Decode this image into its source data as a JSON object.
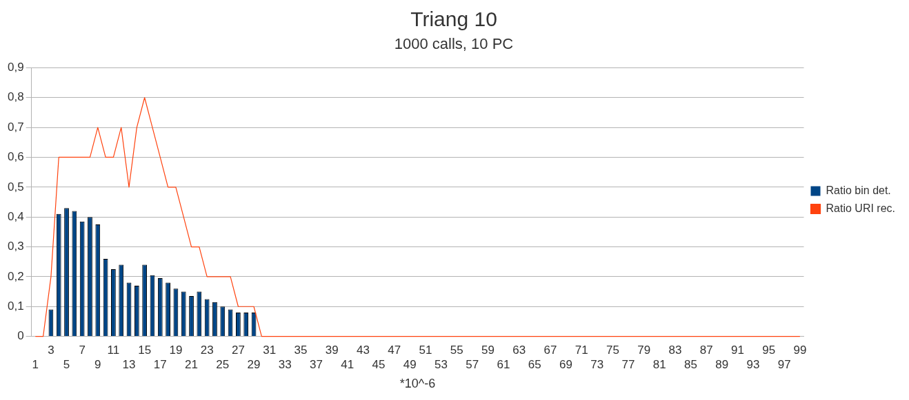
{
  "chart_data": {
    "type": "bar",
    "title": "Triang 10",
    "subtitle": "1000 calls, 10 PC",
    "xlabel": "*10^-6",
    "categories": [
      "1",
      null,
      "3",
      null,
      "5",
      null,
      "7",
      null,
      "9",
      null,
      "11",
      null,
      "13",
      null,
      "15",
      null,
      "17",
      null,
      "19",
      null,
      "21",
      null,
      "23",
      null,
      "25",
      null,
      "27",
      null,
      "29",
      null,
      "31",
      null,
      "33",
      null,
      "35",
      null,
      "37",
      null,
      "39",
      null,
      "41",
      null,
      "43",
      null,
      "45",
      null,
      "47",
      null,
      "49",
      null,
      "51",
      null,
      "53",
      null,
      "55",
      null,
      "57",
      null,
      "59",
      null,
      "61",
      null,
      "63",
      null,
      "65",
      null,
      "67",
      null,
      "69",
      null,
      "71",
      null,
      "73",
      null,
      "75",
      null,
      "77",
      null,
      "79",
      null,
      "81",
      null,
      "83",
      null,
      "85",
      null,
      "87",
      null,
      "89",
      null,
      "91",
      null,
      "93",
      null,
      "95",
      null,
      "97",
      null,
      "99"
    ],
    "series": [
      {
        "name": "Ratio bin det.",
        "color": "#004586",
        "values": [
          0,
          0,
          0.09,
          0.41,
          0.43,
          0.42,
          0.385,
          0.4,
          0.375,
          0.26,
          0.225,
          0.24,
          0.18,
          0.17,
          0.24,
          0.205,
          0.195,
          0.18,
          0.16,
          0.15,
          0.135,
          0.15,
          0.125,
          0.115,
          0.1,
          0.09,
          0.08,
          0.08,
          0.08,
          0,
          0,
          0,
          0,
          0,
          0,
          0,
          0,
          0,
          0,
          0,
          0,
          0,
          0,
          0,
          0,
          0,
          0,
          0,
          0,
          0,
          0,
          0,
          0,
          0,
          0,
          0,
          0,
          0,
          0,
          0,
          0,
          0,
          0,
          0,
          0,
          0,
          0,
          0,
          0,
          0,
          0,
          0,
          0,
          0,
          0,
          0,
          0,
          0,
          0,
          0,
          0,
          0,
          0,
          0,
          0,
          0,
          0,
          0,
          0,
          0,
          0,
          0,
          0,
          0,
          0,
          0,
          0,
          0,
          0
        ]
      },
      {
        "name": "Ratio URI rec.",
        "type": "line",
        "color": "#ff420e",
        "values": [
          0,
          0,
          0.2,
          0.6,
          0.6,
          0.6,
          0.6,
          0.6,
          0.7,
          0.6,
          0.6,
          0.7,
          0.5,
          0.7,
          0.8,
          0.7,
          0.6,
          0.5,
          0.5,
          0.4,
          0.3,
          0.3,
          0.2,
          0.2,
          0.2,
          0.2,
          0.1,
          0.1,
          0.1,
          0,
          0,
          0,
          0,
          0,
          0,
          0,
          0,
          0,
          0,
          0,
          0,
          0,
          0,
          0,
          0,
          0,
          0,
          0,
          0,
          0,
          0,
          0,
          0,
          0,
          0,
          0,
          0,
          0,
          0,
          0,
          0,
          0,
          0,
          0,
          0,
          0,
          0,
          0,
          0,
          0,
          0,
          0,
          0,
          0,
          0,
          0,
          0,
          0,
          0,
          0,
          0,
          0,
          0,
          0,
          0,
          0,
          0,
          0,
          0,
          0,
          0,
          0,
          0,
          0,
          0,
          0,
          0,
          0,
          0
        ]
      }
    ],
    "ylim": [
      0,
      0.9
    ],
    "yticks": [
      0,
      {
        "value": 0.1,
        "label": "0,1"
      },
      {
        "value": 0.2,
        "label": "0,2"
      },
      {
        "value": 0.3,
        "label": "0,3"
      },
      {
        "value": 0.4,
        "label": "0,4"
      },
      {
        "value": 0.5,
        "label": "0,5"
      },
      {
        "value": 0.6,
        "label": "0,6"
      },
      {
        "value": 0.7,
        "label": "0,7"
      },
      {
        "value": 0.8,
        "label": "0,8"
      },
      {
        "value": 0.9,
        "label": "0,9"
      }
    ],
    "grid": "y",
    "legend": "right",
    "marker": "none"
  }
}
